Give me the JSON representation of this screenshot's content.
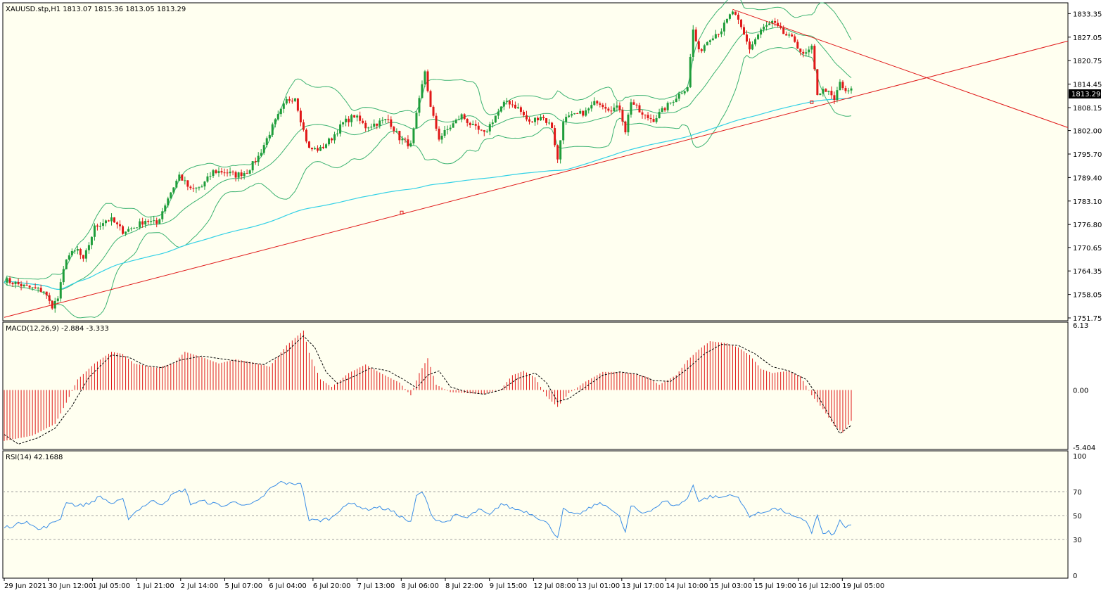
{
  "main_header": "XAUUSD.stp,H1  1813.07 1815.36 1813.05 1813.29",
  "macd_header": "MACD(12,26,9) -2.884 -3.333",
  "rsi_header": "RSI(14) 42.1688",
  "current_price_label": "1813.29",
  "colors": {
    "chart_bg": "#fffff0",
    "bull_candle": "#1f9d3a",
    "bear_candle": "#e01818",
    "bollinger": "#3cb371",
    "moving_average": "#33d1e6",
    "trendline": "#e01818",
    "macd_hist": "#e01818",
    "macd_signal": "#000000",
    "rsi_line": "#3b8ee6",
    "price_tag_bg": "#000000"
  },
  "chart_data": [
    {
      "type": "candlestick",
      "symbol": "XAUUSD.stp",
      "timeframe": "H1",
      "ohlc": {
        "open": 1813.07,
        "high": 1815.36,
        "low": 1813.05,
        "close": 1813.29
      },
      "y_ticks": [
        "1833.35",
        "1827.05",
        "1820.75",
        "1814.45",
        "1808.15",
        "1802.00",
        "1795.70",
        "1789.40",
        "1783.10",
        "1776.80",
        "1770.65",
        "1764.35",
        "1758.05",
        "1751.75"
      ],
      "ylim": [
        1751.75,
        1835.5
      ],
      "x_ticks": [
        "29 Jun 2021",
        "30 Jun 12:00",
        "1 Jul 05:00",
        "1 Jul 21:00",
        "2 Jul 14:00",
        "5 Jul 07:00",
        "6 Jul 04:00",
        "6 Jul 20:00",
        "7 Jul 13:00",
        "8 Jul 06:00",
        "8 Jul 22:00",
        "9 Jul 15:00",
        "12 Jul 08:00",
        "13 Jul 01:00",
        "13 Jul 17:00",
        "14 Jul 10:00",
        "15 Jul 03:00",
        "15 Jul 19:00",
        "16 Jul 12:00",
        "19 Jul 05:00"
      ],
      "close_path": [
        [
          0,
          1762
        ],
        [
          8,
          1760
        ],
        [
          14,
          1759
        ],
        [
          16,
          1756
        ],
        [
          17,
          1755
        ],
        [
          19,
          1757
        ],
        [
          22,
          1768
        ],
        [
          26,
          1770
        ],
        [
          28,
          1767
        ],
        [
          32,
          1776
        ],
        [
          36,
          1778
        ],
        [
          38,
          1778
        ],
        [
          42,
          1775
        ],
        [
          46,
          1776
        ],
        [
          50,
          1778
        ],
        [
          54,
          1777
        ],
        [
          58,
          1784
        ],
        [
          62,
          1790
        ],
        [
          66,
          1786
        ],
        [
          70,
          1787
        ],
        [
          74,
          1791
        ],
        [
          78,
          1791
        ],
        [
          82,
          1790
        ],
        [
          86,
          1791
        ],
        [
          90,
          1795
        ],
        [
          95,
          1803
        ],
        [
          100,
          1810
        ],
        [
          103,
          1811
        ],
        [
          106,
          1802
        ],
        [
          108,
          1797
        ],
        [
          112,
          1797
        ],
        [
          116,
          1800
        ],
        [
          120,
          1804
        ],
        [
          124,
          1806
        ],
        [
          128,
          1803
        ],
        [
          132,
          1804
        ],
        [
          136,
          1805
        ],
        [
          140,
          1800
        ],
        [
          144,
          1798
        ],
        [
          147,
          1810
        ],
        [
          149,
          1818
        ],
        [
          151,
          1808
        ],
        [
          154,
          1800
        ],
        [
          158,
          1803
        ],
        [
          162,
          1806
        ],
        [
          166,
          1803
        ],
        [
          170,
          1801
        ],
        [
          174,
          1806
        ],
        [
          178,
          1810
        ],
        [
          182,
          1808
        ],
        [
          186,
          1804
        ],
        [
          190,
          1806
        ],
        [
          194,
          1803
        ],
        [
          196,
          1794
        ],
        [
          198,
          1805
        ],
        [
          202,
          1806
        ],
        [
          206,
          1807
        ],
        [
          210,
          1810
        ],
        [
          214,
          1808
        ],
        [
          218,
          1808
        ],
        [
          220,
          1802
        ],
        [
          222,
          1810
        ],
        [
          226,
          1806
        ],
        [
          230,
          1805
        ],
        [
          234,
          1808
        ],
        [
          238,
          1811
        ],
        [
          242,
          1814
        ],
        [
          244,
          1829
        ],
        [
          246,
          1823
        ],
        [
          250,
          1827
        ],
        [
          254,
          1829
        ],
        [
          258,
          1834
        ],
        [
          260,
          1831
        ],
        [
          264,
          1824
        ],
        [
          268,
          1829
        ],
        [
          272,
          1831
        ],
        [
          276,
          1828
        ],
        [
          280,
          1826
        ],
        [
          283,
          1822
        ],
        [
          286,
          1824
        ],
        [
          288,
          1812
        ],
        [
          291,
          1813
        ],
        [
          294,
          1810
        ],
        [
          296,
          1815
        ],
        [
          298,
          1812
        ],
        [
          300,
          1813.29
        ]
      ]
    },
    {
      "type": "bar",
      "name": "MACD(12,26,9)",
      "macd": -2.884,
      "signal": -3.333,
      "y_ticks": [
        "6.13",
        "0.00",
        "-5.404"
      ],
      "ylim": [
        -5.404,
        6.13
      ],
      "histogram_path": [
        [
          0,
          -4.8
        ],
        [
          10,
          -4.3
        ],
        [
          18,
          -3.2
        ],
        [
          22,
          -1.2
        ],
        [
          26,
          1.0
        ],
        [
          32,
          2.5
        ],
        [
          38,
          3.6
        ],
        [
          42,
          3.4
        ],
        [
          46,
          2.5
        ],
        [
          54,
          2.1
        ],
        [
          60,
          2.5
        ],
        [
          64,
          3.6
        ],
        [
          70,
          3.1
        ],
        [
          76,
          2.5
        ],
        [
          82,
          2.9
        ],
        [
          88,
          2.6
        ],
        [
          94,
          2.2
        ],
        [
          100,
          4.2
        ],
        [
          106,
          5.6
        ],
        [
          108,
          3.5
        ],
        [
          112,
          1.0
        ],
        [
          116,
          0.3
        ],
        [
          122,
          1.6
        ],
        [
          128,
          2.4
        ],
        [
          134,
          1.5
        ],
        [
          140,
          0.7
        ],
        [
          144,
          -0.5
        ],
        [
          147,
          1.6
        ],
        [
          150,
          3.0
        ],
        [
          153,
          0.5
        ],
        [
          158,
          -0.2
        ],
        [
          164,
          -0.3
        ],
        [
          170,
          -0.4
        ],
        [
          176,
          0.1
        ],
        [
          180,
          1.4
        ],
        [
          184,
          1.8
        ],
        [
          188,
          1.2
        ],
        [
          192,
          -0.6
        ],
        [
          196,
          -1.6
        ],
        [
          200,
          -0.3
        ],
        [
          206,
          0.8
        ],
        [
          212,
          1.7
        ],
        [
          216,
          1.7
        ],
        [
          222,
          1.6
        ],
        [
          228,
          1.2
        ],
        [
          232,
          0.5
        ],
        [
          238,
          1.4
        ],
        [
          242,
          2.8
        ],
        [
          246,
          3.8
        ],
        [
          250,
          4.6
        ],
        [
          256,
          4.4
        ],
        [
          260,
          4.0
        ],
        [
          264,
          3.3
        ],
        [
          268,
          2.0
        ],
        [
          272,
          1.6
        ],
        [
          278,
          1.8
        ],
        [
          282,
          1.3
        ],
        [
          286,
          -0.5
        ],
        [
          290,
          -1.8
        ],
        [
          294,
          -3.4
        ],
        [
          297,
          -4.0
        ],
        [
          300,
          -2.9
        ]
      ],
      "signal_path": [
        [
          0,
          -4.2
        ],
        [
          5,
          -5.1
        ],
        [
          12,
          -4.5
        ],
        [
          18,
          -3.6
        ],
        [
          24,
          -1.5
        ],
        [
          30,
          1.2
        ],
        [
          38,
          3.3
        ],
        [
          44,
          3.1
        ],
        [
          50,
          2.3
        ],
        [
          56,
          2.1
        ],
        [
          62,
          2.8
        ],
        [
          70,
          3.2
        ],
        [
          78,
          2.9
        ],
        [
          86,
          2.6
        ],
        [
          92,
          2.4
        ],
        [
          100,
          3.6
        ],
        [
          106,
          5.1
        ],
        [
          110,
          4.0
        ],
        [
          114,
          1.7
        ],
        [
          118,
          0.6
        ],
        [
          124,
          1.3
        ],
        [
          130,
          2.1
        ],
        [
          136,
          1.8
        ],
        [
          142,
          0.9
        ],
        [
          146,
          0.2
        ],
        [
          150,
          1.4
        ],
        [
          154,
          1.8
        ],
        [
          158,
          0.3
        ],
        [
          164,
          -0.2
        ],
        [
          170,
          -0.4
        ],
        [
          176,
          0.0
        ],
        [
          182,
          1.1
        ],
        [
          188,
          1.6
        ],
        [
          192,
          0.7
        ],
        [
          196,
          -1.1
        ],
        [
          200,
          -0.8
        ],
        [
          206,
          0.3
        ],
        [
          212,
          1.4
        ],
        [
          218,
          1.7
        ],
        [
          224,
          1.5
        ],
        [
          230,
          0.9
        ],
        [
          236,
          0.8
        ],
        [
          242,
          2.0
        ],
        [
          248,
          3.4
        ],
        [
          254,
          4.3
        ],
        [
          260,
          4.2
        ],
        [
          266,
          3.4
        ],
        [
          272,
          2.2
        ],
        [
          278,
          1.8
        ],
        [
          284,
          1.0
        ],
        [
          288,
          -0.5
        ],
        [
          292,
          -2.3
        ],
        [
          296,
          -4.1
        ],
        [
          300,
          -3.333
        ]
      ]
    },
    {
      "type": "line",
      "name": "RSI(14)",
      "value": 42.1688,
      "y_ticks": [
        "100",
        "70",
        "50",
        "30",
        "0"
      ],
      "ylim": [
        0,
        100
      ],
      "levels": [
        70,
        50,
        30
      ],
      "path": [
        [
          0,
          40
        ],
        [
          4,
          42
        ],
        [
          8,
          46
        ],
        [
          12,
          38
        ],
        [
          16,
          42
        ],
        [
          20,
          48
        ],
        [
          22,
          62
        ],
        [
          26,
          58
        ],
        [
          30,
          60
        ],
        [
          34,
          66
        ],
        [
          38,
          60
        ],
        [
          42,
          63
        ],
        [
          44,
          48
        ],
        [
          48,
          56
        ],
        [
          52,
          62
        ],
        [
          56,
          60
        ],
        [
          60,
          68
        ],
        [
          64,
          72
        ],
        [
          66,
          60
        ],
        [
          70,
          62
        ],
        [
          74,
          60
        ],
        [
          78,
          58
        ],
        [
          82,
          62
        ],
        [
          86,
          58
        ],
        [
          90,
          62
        ],
        [
          94,
          72
        ],
        [
          98,
          78
        ],
        [
          102,
          76
        ],
        [
          105,
          78
        ],
        [
          108,
          46
        ],
        [
          112,
          46
        ],
        [
          116,
          48
        ],
        [
          120,
          58
        ],
        [
          124,
          60
        ],
        [
          128,
          55
        ],
        [
          132,
          57
        ],
        [
          136,
          55
        ],
        [
          140,
          50
        ],
        [
          144,
          44
        ],
        [
          146,
          66
        ],
        [
          148,
          70
        ],
        [
          152,
          48
        ],
        [
          156,
          44
        ],
        [
          160,
          50
        ],
        [
          164,
          48
        ],
        [
          168,
          55
        ],
        [
          172,
          50
        ],
        [
          176,
          60
        ],
        [
          180,
          56
        ],
        [
          184,
          54
        ],
        [
          188,
          50
        ],
        [
          192,
          44
        ],
        [
          196,
          32
        ],
        [
          198,
          55
        ],
        [
          202,
          50
        ],
        [
          206,
          54
        ],
        [
          210,
          60
        ],
        [
          214,
          58
        ],
        [
          218,
          48
        ],
        [
          220,
          36
        ],
        [
          222,
          58
        ],
        [
          226,
          52
        ],
        [
          230,
          56
        ],
        [
          234,
          62
        ],
        [
          238,
          58
        ],
        [
          242,
          64
        ],
        [
          244,
          76
        ],
        [
          246,
          62
        ],
        [
          250,
          66
        ],
        [
          254,
          65
        ],
        [
          258,
          68
        ],
        [
          260,
          64
        ],
        [
          264,
          50
        ],
        [
          268,
          52
        ],
        [
          272,
          56
        ],
        [
          276,
          54
        ],
        [
          280,
          48
        ],
        [
          284,
          46
        ],
        [
          286,
          36
        ],
        [
          288,
          50
        ],
        [
          290,
          34
        ],
        [
          292,
          36
        ],
        [
          294,
          34
        ],
        [
          296,
          46
        ],
        [
          298,
          40
        ],
        [
          300,
          42.1688
        ]
      ]
    }
  ]
}
